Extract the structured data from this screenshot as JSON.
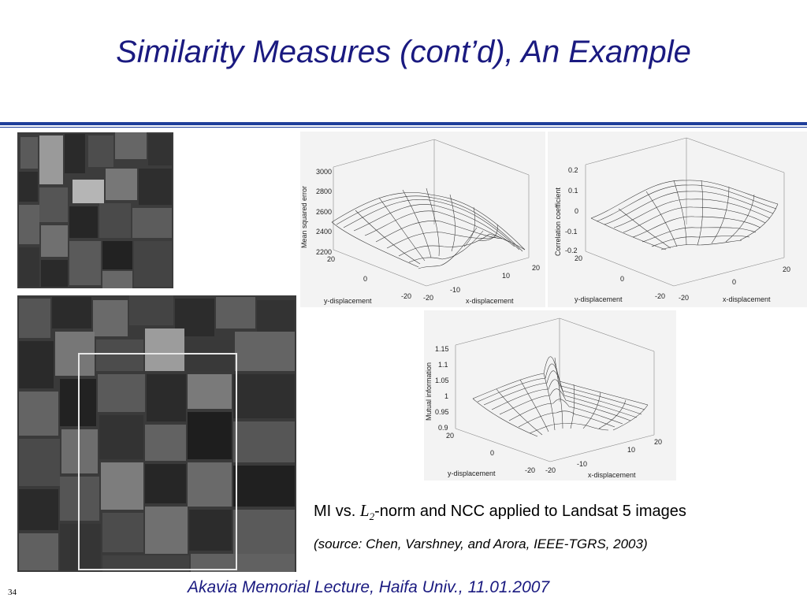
{
  "slide": {
    "title": "Similarity Measures (cont’d), An Example",
    "caption_pre": "MI vs. ",
    "caption_L": "L",
    "caption_sub": "2",
    "caption_post": "-norm and NCC applied to Landsat 5 images",
    "source": "(source: Chen, Varshney, and Arora, IEEE-TGRS, 2003)",
    "footer": "Akavia Memorial Lecture, Haifa Univ., 11.01.2007",
    "page_number": "34"
  },
  "plots": [
    {
      "zlabel": "Mean squared error",
      "zticks": [
        "3000",
        "2800",
        "2600",
        "2400",
        "2200"
      ],
      "y_axis_label": "y-displacement",
      "x_axis_label": "x-displacement",
      "y_ticks": [
        "20",
        "0",
        "-20"
      ],
      "x_ticks": [
        "-20",
        "-10",
        "10",
        "20"
      ]
    },
    {
      "zlabel": "Correlation coefficient",
      "zticks": [
        "0.2",
        "0.1",
        "0",
        "-0.1",
        "-0.2"
      ],
      "y_axis_label": "y-displacement",
      "x_axis_label": "x-displacement",
      "y_ticks": [
        "20",
        "0",
        "-20"
      ],
      "x_ticks": [
        "-20",
        "0",
        "20"
      ]
    },
    {
      "zlabel": "Mutual information",
      "zticks": [
        "1.15",
        "1.1",
        "1.05",
        "1",
        "0.95",
        "0.9"
      ],
      "y_axis_label": "y-displacement",
      "x_axis_label": "x-displacement",
      "y_ticks": [
        "20",
        "0",
        "-20"
      ],
      "x_ticks": [
        "-20",
        "-10",
        "10",
        "20"
      ]
    }
  ]
}
